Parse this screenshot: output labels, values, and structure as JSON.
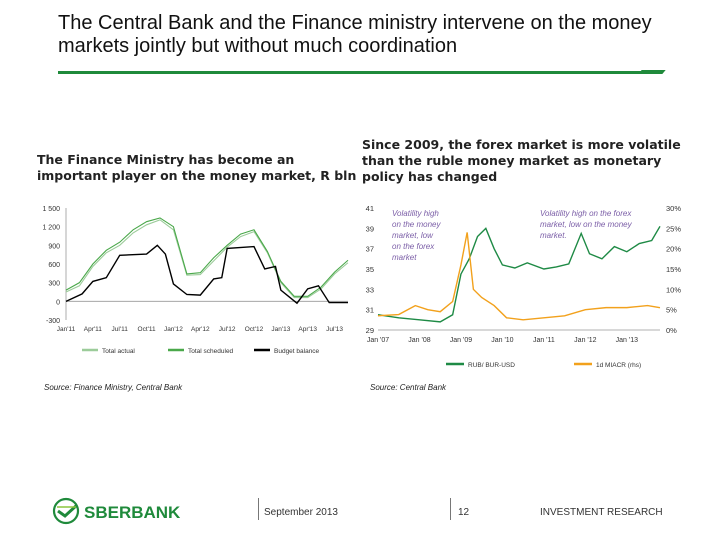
{
  "slide": {
    "title": "The Central Bank and the Finance ministry intervene on the money markets jointly but without much coordination"
  },
  "left_panel": {
    "heading": "The Finance Ministry has become an important player on the money market, R bln",
    "source": "Source: Finance Ministry, Central Bank"
  },
  "right_panel": {
    "heading": "Since 2009, the forex market is more volatile than the ruble money market as monetary policy has changed",
    "source": "Source: Central Bank"
  },
  "footer": {
    "brand": "SBERBANK",
    "date": "September 2013",
    "page": "12",
    "section": "INVESTMENT RESEARCH"
  },
  "colors": {
    "accent": "#1f8a3b",
    "black": "#000000",
    "light_green": "#9ccc9a",
    "dark_green": "#1e8a45",
    "orange": "#f2a11c"
  },
  "chart_data": [
    {
      "type": "line",
      "x_ticks": [
        "Jan'11",
        "Apr'11",
        "Jul'11",
        "Oct'11",
        "Jan'12",
        "Apr'12",
        "Jul'12",
        "Oct'12",
        "Jan'13",
        "Apr'13",
        "Jul'13"
      ],
      "y_ticks": [
        "1 500",
        "1 200",
        "900",
        "600",
        "300",
        "0",
        "-300"
      ],
      "ylim": [
        -300,
        1500
      ],
      "grid": false,
      "legend_position": "bottom",
      "series": [
        {
          "name": "Total actual",
          "color": "#9ccc9a",
          "x": [
            0,
            0.5,
            1,
            1.5,
            2,
            2.5,
            3,
            3.5,
            4,
            4.5,
            5,
            5.5,
            6,
            6.5,
            7,
            7.5,
            8,
            8.5,
            9,
            9.5,
            10,
            10.5
          ],
          "values": [
            150,
            250,
            560,
            780,
            900,
            1100,
            1230,
            1310,
            1150,
            420,
            430,
            650,
            870,
            1040,
            1120,
            780,
            300,
            60,
            60,
            200,
            440,
            620
          ]
        },
        {
          "name": "Total scheduled",
          "color": "#4aa84a",
          "x": [
            0,
            0.5,
            1,
            1.5,
            2,
            2.5,
            3,
            3.5,
            4,
            4.5,
            5,
            5.5,
            6,
            6.5,
            7,
            7.5,
            8,
            8.5,
            9,
            9.5,
            10,
            10.5
          ],
          "values": [
            180,
            300,
            600,
            820,
            950,
            1150,
            1280,
            1340,
            1200,
            440,
            460,
            700,
            900,
            1080,
            1150,
            800,
            320,
            80,
            80,
            230,
            470,
            660
          ]
        },
        {
          "name": "Budget balance",
          "color": "#000000",
          "x": [
            0,
            0.6,
            1,
            1.5,
            2,
            3,
            3.4,
            3.7,
            4,
            4.5,
            5,
            5.5,
            5.8,
            6,
            7,
            7.4,
            7.8,
            8,
            8.6,
            9,
            9.4,
            9.8,
            10.5
          ],
          "values": [
            0,
            120,
            320,
            380,
            740,
            760,
            900,
            760,
            280,
            110,
            100,
            360,
            380,
            850,
            880,
            520,
            560,
            180,
            -30,
            200,
            250,
            -20,
            -20
          ]
        }
      ]
    },
    {
      "type": "line",
      "x_ticks": [
        "Jan '07",
        "Jan '08",
        "Jan '09",
        "Jan '10",
        "Jan '11",
        "Jan '12",
        "Jan '13"
      ],
      "y_left_ticks": [
        "41",
        "39",
        "37",
        "35",
        "33",
        "31",
        "29"
      ],
      "y_right_ticks": [
        "30%",
        "25%",
        "20%",
        "15%",
        "10%",
        "5%",
        "0%"
      ],
      "ylim_left": [
        29,
        41
      ],
      "ylim_right": [
        0,
        30
      ],
      "legend_position": "bottom",
      "annotations": [
        "Volatility high on the money market, low on the forex market",
        "Volatility high on the forex market, low on the money market"
      ],
      "series": [
        {
          "name": "RUB/ BUR-USD",
          "axis": "left",
          "color": "#1e8a45",
          "x": [
            0,
            0.5,
            1,
            1.5,
            1.8,
            2.0,
            2.2,
            2.4,
            2.6,
            2.8,
            3.0,
            3.3,
            3.6,
            4.0,
            4.3,
            4.6,
            4.9,
            5.1,
            5.4,
            5.7,
            6.0,
            6.3,
            6.6,
            6.8
          ],
          "values": [
            30.5,
            30.2,
            30.0,
            29.8,
            30.5,
            34.5,
            36.0,
            38.2,
            39.0,
            37.0,
            35.4,
            35.1,
            35.6,
            35.0,
            35.2,
            35.5,
            38.5,
            36.5,
            36.0,
            37.2,
            36.7,
            37.5,
            37.8,
            39.2
          ]
        },
        {
          "name": "1d MIACR (rhs)",
          "axis": "right",
          "color": "#f2a11c",
          "x": [
            0,
            0.5,
            0.9,
            1.2,
            1.5,
            1.8,
            2.0,
            2.15,
            2.3,
            2.5,
            2.8,
            3.1,
            3.5,
            4.0,
            4.5,
            5.0,
            5.5,
            6.0,
            6.5,
            6.8
          ],
          "values": [
            3.5,
            3.8,
            6.0,
            5.0,
            4.5,
            7.0,
            16.0,
            24.0,
            10.0,
            8.0,
            6.0,
            3.0,
            2.5,
            3.0,
            3.5,
            5.0,
            5.5,
            5.5,
            6.0,
            5.5
          ]
        }
      ]
    }
  ]
}
